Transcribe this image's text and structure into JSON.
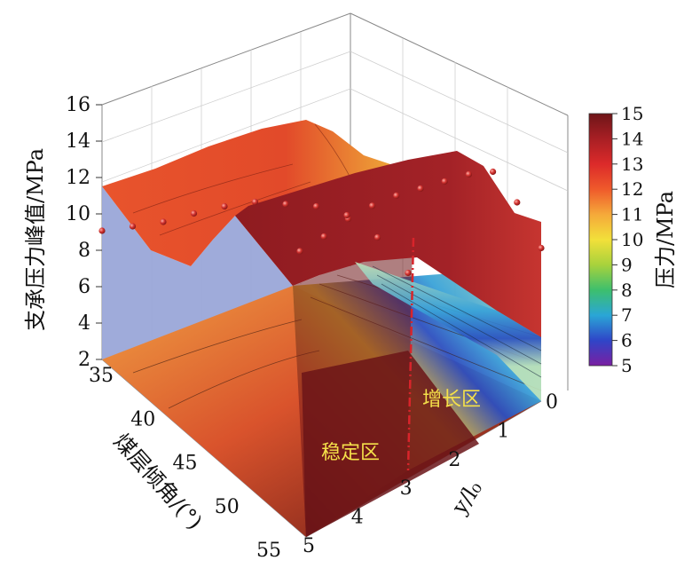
{
  "chart_data": {
    "type": "surface3d",
    "zlabel": "支承压力峰值/MPa",
    "ylabel": "煤层倾角/(°)",
    "xlabel": "y/l₀",
    "colorbar_label": "压力/MPa",
    "zticks": [
      "2",
      "4",
      "6",
      "8",
      "10",
      "12",
      "14",
      "16"
    ],
    "yticks": [
      "35",
      "40",
      "45",
      "50",
      "55"
    ],
    "xticks": [
      "0",
      "1",
      "2",
      "3",
      "4",
      "5"
    ],
    "colorbar_ticks": [
      "5",
      "6",
      "7",
      "8",
      "9",
      "10",
      "11",
      "12",
      "13",
      "14",
      "15"
    ],
    "zlim": [
      2,
      16
    ],
    "colorbar_range": [
      5,
      15
    ],
    "annotations": [
      "增长区",
      "稳定区"
    ],
    "divider_x": 3,
    "series": [
      {
        "dip": 55,
        "x": [
          0,
          0.5,
          1,
          1.5,
          2,
          2.5,
          3,
          3.5,
          4,
          4.5,
          5
        ],
        "values": [
          8.5,
          12.0,
          14.5,
          14.8,
          14.8,
          14.8,
          14.8,
          14.6,
          14.2,
          13.5,
          13.0
        ]
      },
      {
        "dip": 35,
        "x": [
          0,
          0.5,
          1,
          1.5,
          2,
          2.5,
          3,
          3.5,
          4,
          4.5,
          5
        ],
        "values": [
          4.5,
          7.5,
          9.5,
          10.5,
          11.0,
          11.5,
          11.5,
          11.3,
          11.0,
          11.0,
          11.0
        ]
      }
    ],
    "colors": {
      "surface_top": "#a31f25",
      "floor_mid": "#e8773a",
      "wall": "#9aa8d8",
      "marker": "#c0262d",
      "divider": "#d8242b",
      "region_text": "#f4e04a"
    }
  }
}
